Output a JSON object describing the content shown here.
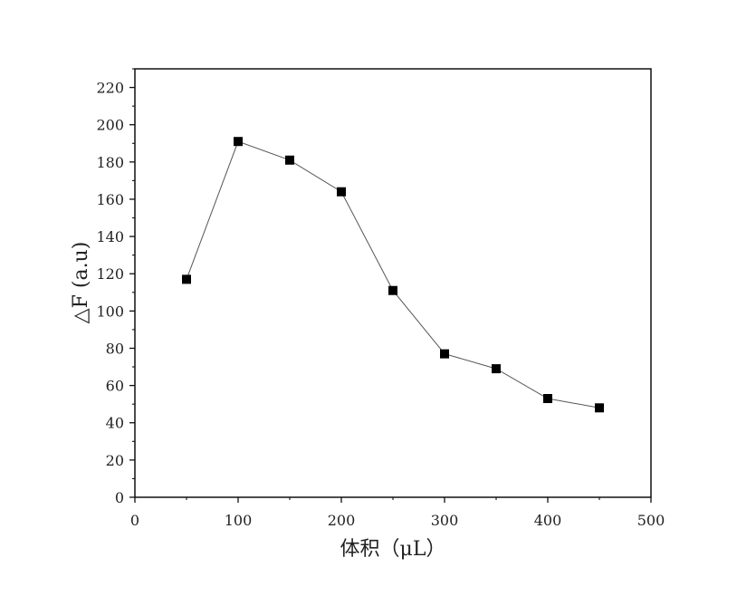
{
  "chart_data": {
    "type": "line",
    "title": "",
    "xlabel": "体积（μL）",
    "ylabel": "△F (a.u)",
    "xlim": [
      0,
      500
    ],
    "ylim": [
      0,
      230
    ],
    "x_ticks": [
      "0",
      "100",
      "200",
      "300",
      "400",
      "500"
    ],
    "y_ticks": [
      "0",
      "20",
      "40",
      "60",
      "80",
      "100",
      "120",
      "140",
      "160",
      "180",
      "200",
      "220"
    ],
    "grid": false,
    "legend": "none",
    "marker": "square",
    "line_color": "#555555",
    "marker_color": "#000000",
    "series": [
      {
        "x": [
          50,
          100,
          150,
          200,
          250,
          300,
          350,
          400,
          450
        ],
        "y": [
          117,
          191,
          181,
          164,
          111,
          77,
          69,
          53,
          48
        ]
      }
    ]
  }
}
